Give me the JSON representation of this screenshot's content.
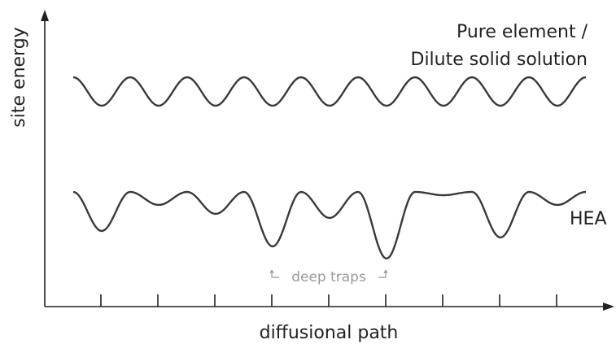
{
  "diagram": {
    "y_axis_label": "site energy",
    "x_axis_label": "diffusional path",
    "top_curve_label": [
      "Pure element /",
      "Dilute solid solution"
    ],
    "bottom_curve_label": "HEA",
    "annotation": "deep traps"
  }
}
